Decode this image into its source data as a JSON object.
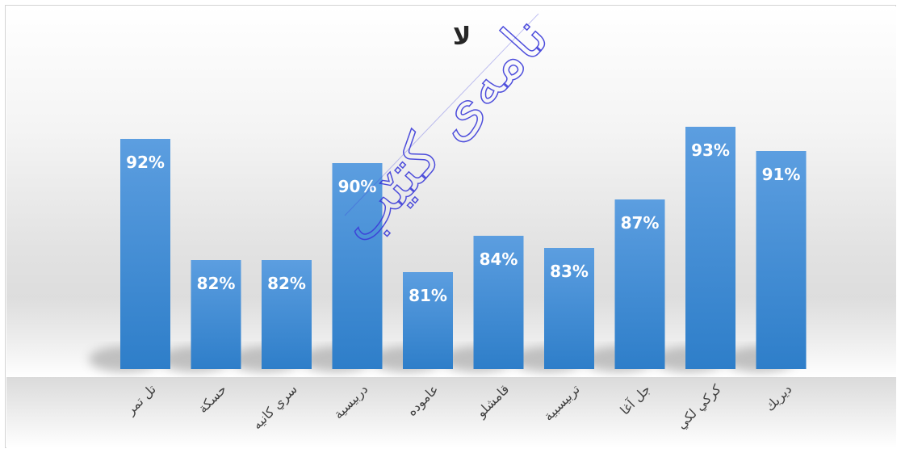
{
  "chart_data": {
    "type": "bar",
    "title": "لا",
    "categories": [
      "تل تمر",
      "حسكة",
      "سري كانيه",
      "دربيسية",
      "عاموده",
      "قامشلو",
      "تربيسبية",
      "جل آغا",
      "كركي لكي",
      "ديريك"
    ],
    "values": [
      92,
      82,
      82,
      90,
      81,
      84,
      83,
      87,
      93,
      91
    ],
    "data_labels": [
      "92%",
      "82%",
      "82%",
      "90%",
      "81%",
      "84%",
      "83%",
      "87%",
      "93%",
      "91%"
    ],
    "ylim": [
      73,
      95
    ],
    "grid": false,
    "legend": "none",
    "bar_color": "#2e7ec9",
    "bar_color_light": "#5c9ee0"
  },
  "watermark": {
    "text": "نامەی کتێب",
    "color": "#3b3bd9"
  }
}
